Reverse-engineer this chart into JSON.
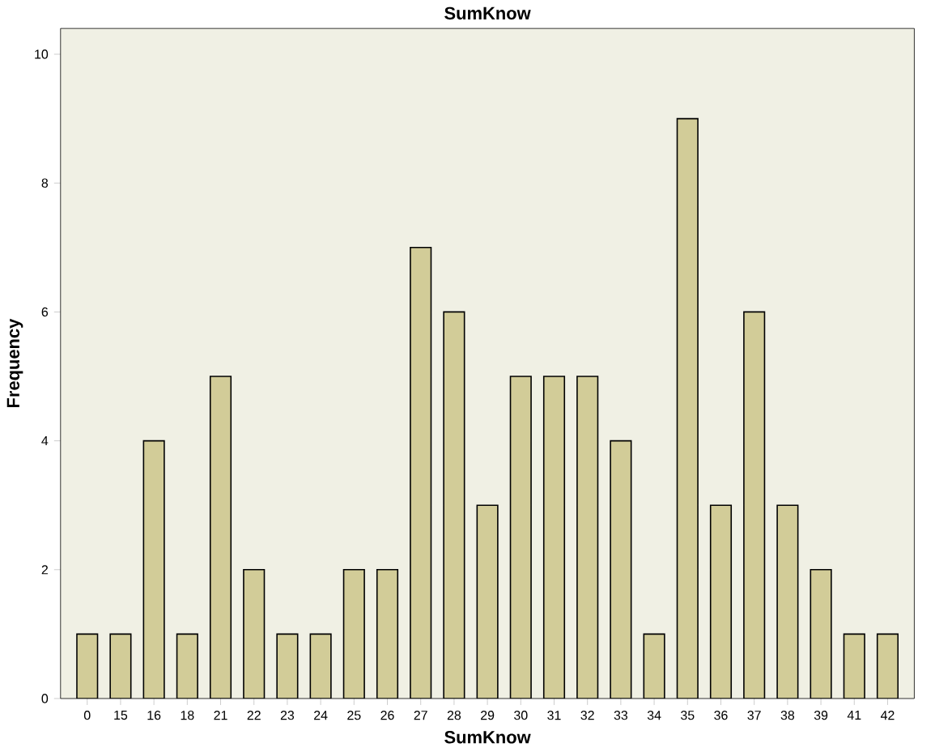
{
  "chart_data": {
    "type": "bar",
    "title": "SumKnow",
    "xlabel": "SumKnow",
    "ylabel": "Frequency",
    "categories": [
      "0",
      "15",
      "16",
      "18",
      "21",
      "22",
      "23",
      "24",
      "25",
      "26",
      "27",
      "28",
      "29",
      "30",
      "31",
      "32",
      "33",
      "34",
      "35",
      "36",
      "37",
      "38",
      "39",
      "41",
      "42"
    ],
    "values": [
      1,
      1,
      4,
      1,
      5,
      2,
      1,
      1,
      2,
      2,
      7,
      6,
      3,
      5,
      5,
      5,
      4,
      1,
      9,
      3,
      6,
      3,
      2,
      1,
      1
    ],
    "color": "#d2cc98",
    "ylim": [
      0,
      10.4
    ],
    "yticks": [
      0,
      2,
      4,
      6,
      8,
      10
    ],
    "grid": false
  }
}
